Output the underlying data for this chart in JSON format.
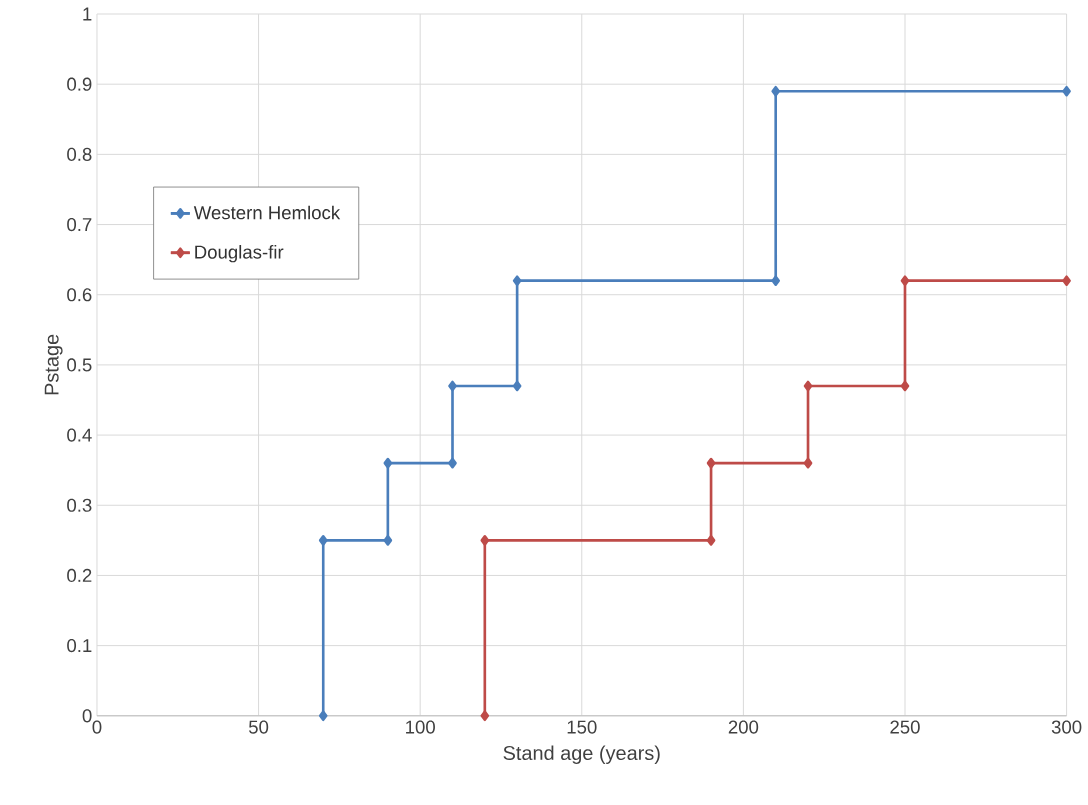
{
  "chart_data": {
    "type": "line",
    "xlabel": "Stand age (years)",
    "ylabel": "Pstage",
    "xlim": [
      0,
      300
    ],
    "xticks": [
      0,
      50,
      100,
      150,
      200,
      250,
      300
    ],
    "ylim": [
      0,
      1
    ],
    "yticks": [
      0,
      0.1,
      0.2,
      0.3,
      0.4,
      0.5,
      0.6,
      0.7,
      0.8,
      0.9,
      1
    ],
    "grid": true,
    "legend": "left",
    "marker": "diamond",
    "line_style": "solid",
    "series": [
      {
        "name": "Western Hemlock",
        "color": "#4a7ebb",
        "x": [
          70,
          70,
          90,
          90,
          110,
          110,
          130,
          130,
          210,
          210,
          300
        ],
        "values": [
          0,
          0.25,
          0.25,
          0.36,
          0.36,
          0.47,
          0.47,
          0.62,
          0.62,
          0.89,
          0.89
        ]
      },
      {
        "name": "Douglas-fir",
        "color": "#be4b48",
        "x": [
          120,
          120,
          190,
          190,
          220,
          220,
          250,
          250,
          300
        ],
        "values": [
          0,
          0.25,
          0.25,
          0.36,
          0.36,
          0.47,
          0.47,
          0.62,
          0.62
        ]
      }
    ]
  }
}
